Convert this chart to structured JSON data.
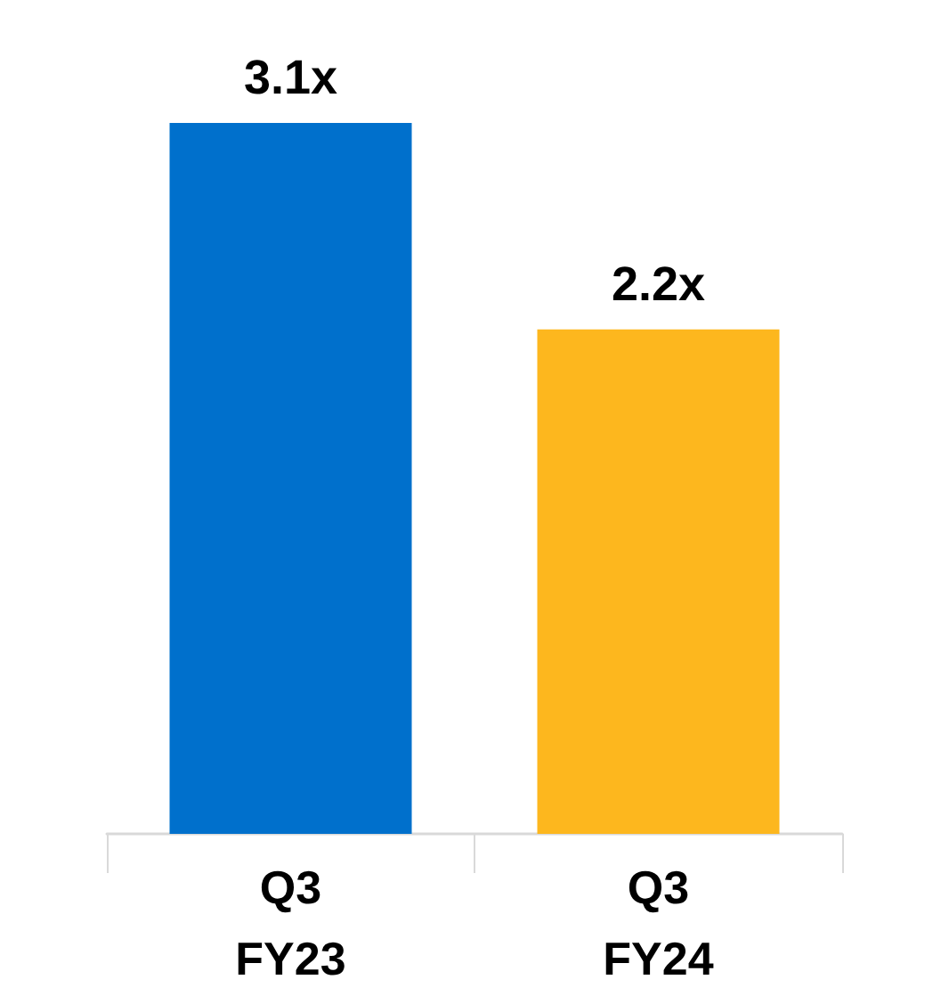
{
  "chart_data": {
    "type": "bar",
    "categories": [
      "Q3\nFY23",
      "Q3\nFY24"
    ],
    "values": [
      3.1,
      2.2
    ],
    "colors": [
      "#0070cc",
      "#fdb71e"
    ],
    "value_labels": [
      "3.1x",
      "2.2x"
    ]
  }
}
